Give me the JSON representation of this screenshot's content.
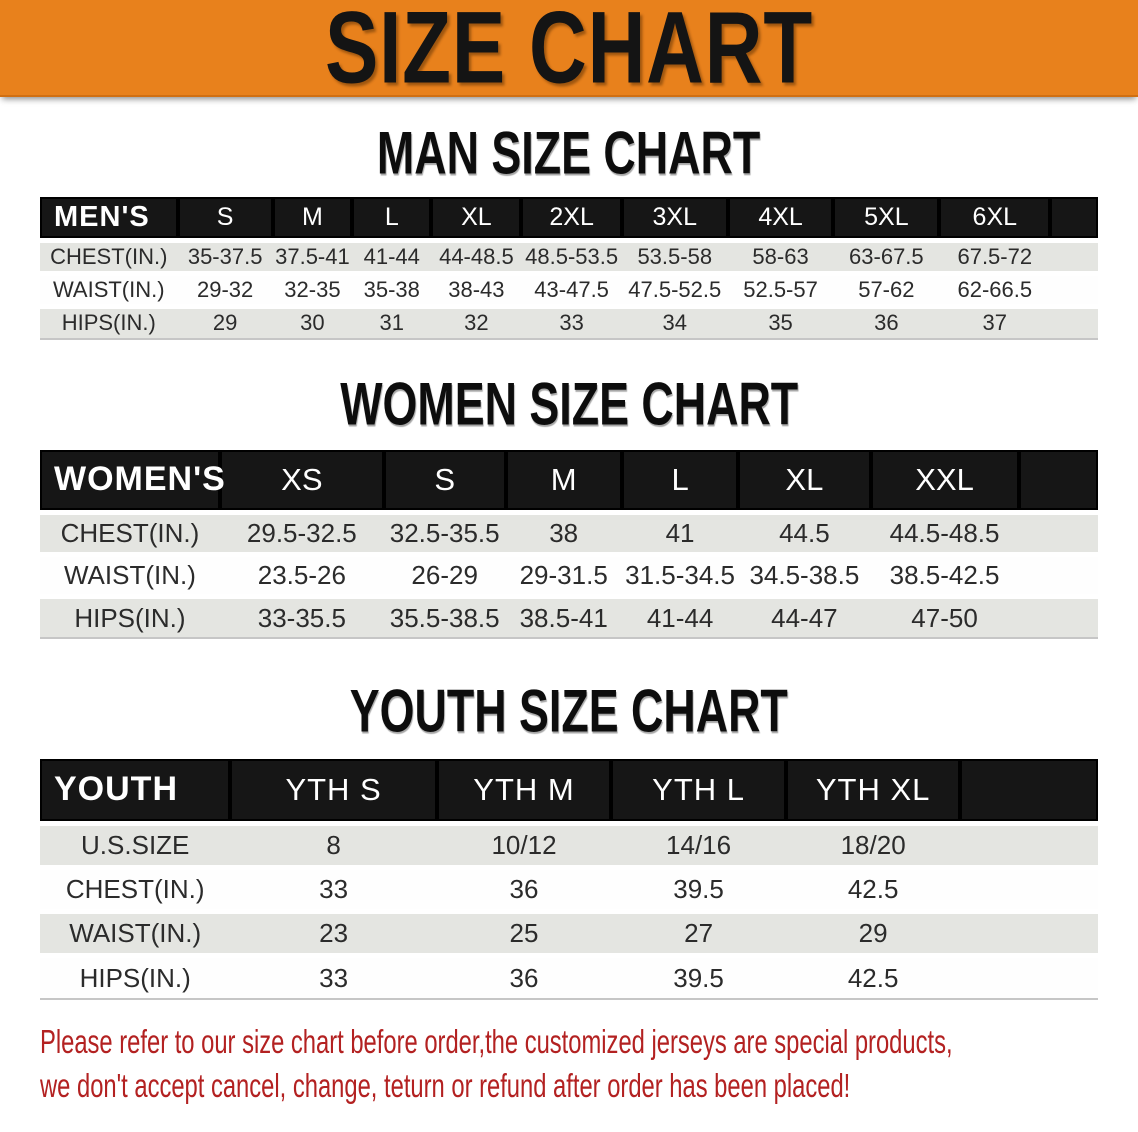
{
  "banner": {
    "title": "SIZE CHART",
    "bg": "#E8811C",
    "text_color": "#141414"
  },
  "tables_style": {
    "header_bg": "#161616",
    "header_text": "#FFFFFF",
    "stripe_color": "#E4E5E1"
  },
  "sections": [
    {
      "heading": "MAN SIZE CHART",
      "table": {
        "header": [
          "MEN'S",
          "S",
          "M",
          "L",
          "XL",
          "2XL",
          "3XL",
          "4XL",
          "5XL",
          "6XL"
        ],
        "rows": [
          {
            "label": "CHEST(IN.)",
            "values": [
              "35-37.5",
              "37.5-41",
              "41-44",
              "44-48.5",
              "48.5-53.5",
              "53.5-58",
              "58-63",
              "63-67.5",
              "67.5-72"
            ]
          },
          {
            "label": "WAIST(IN.)",
            "values": [
              "29-32",
              "32-35",
              "35-38",
              "38-43",
              "43-47.5",
              "47.5-52.5",
              "52.5-57",
              "57-62",
              "62-66.5"
            ]
          },
          {
            "label": "HIPS(IN.)",
            "values": [
              "29",
              "30",
              "31",
              "32",
              "33",
              "34",
              "35",
              "36",
              "37"
            ]
          }
        ]
      }
    },
    {
      "heading": "WOMEN SIZE CHART",
      "table": {
        "header": [
          "WOMEN'S",
          "XS",
          "S",
          "M",
          "L",
          "XL",
          "XXL"
        ],
        "rows": [
          {
            "label": "CHEST(IN.)",
            "values": [
              "29.5-32.5",
              "32.5-35.5",
              "38",
              "41",
              "44.5",
              "44.5-48.5"
            ]
          },
          {
            "label": "WAIST(IN.)",
            "values": [
              "23.5-26",
              "26-29",
              "29-31.5",
              "31.5-34.5",
              "34.5-38.5",
              "38.5-42.5"
            ]
          },
          {
            "label": "HIPS(IN.)",
            "values": [
              "33-35.5",
              "35.5-38.5",
              "38.5-41",
              "41-44",
              "44-47",
              "47-50"
            ]
          }
        ]
      }
    },
    {
      "heading": "YOUTH SIZE CHART",
      "table": {
        "header": [
          "YOUTH",
          "YTH S",
          "YTH M",
          "YTH L",
          "YTH XL"
        ],
        "rows": [
          {
            "label": "U.S.SIZE",
            "values": [
              "8",
              "10/12",
              "14/16",
              "18/20"
            ]
          },
          {
            "label": "CHEST(IN.)",
            "values": [
              "33",
              "36",
              "39.5",
              "42.5"
            ]
          },
          {
            "label": "WAIST(IN.)",
            "values": [
              "23",
              "25",
              "27",
              "29"
            ]
          },
          {
            "label": "HIPS(IN.)",
            "values": [
              "33",
              "36",
              "39.5",
              "42.5"
            ]
          }
        ]
      }
    }
  ],
  "disclaimer": {
    "line1": "Please refer to our size chart before order,the customized jerseys are special products,",
    "line2": "we don't accept cancel, change, teturn or refund after order has been placed!",
    "color": "#B32121"
  }
}
